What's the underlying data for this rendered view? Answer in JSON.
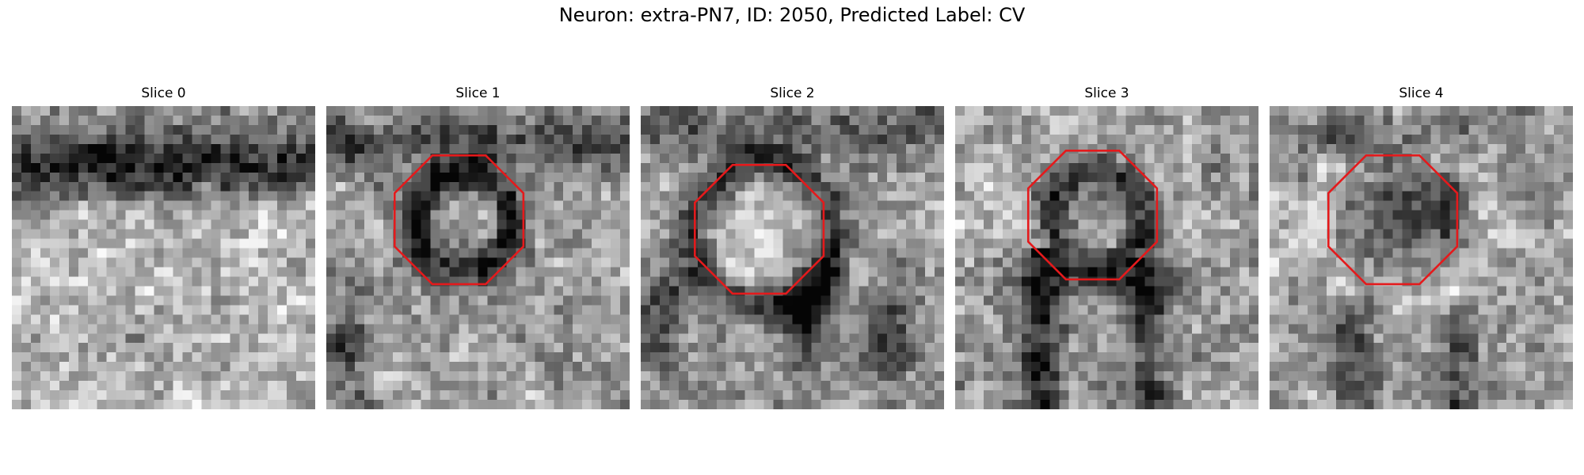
{
  "figure": {
    "title": "Neuron: extra-PN7, ID: 2050, Predicted Label: CV"
  },
  "overlay_color": "#e41a1c",
  "slices": [
    {
      "label": "Slice 0",
      "pattern": "dark-top-band",
      "has_roi": false
    },
    {
      "label": "Slice 1",
      "pattern": "dark-ring",
      "has_roi": true
    },
    {
      "label": "Slice 2",
      "pattern": "bright-core-dark-ring",
      "has_roi": true
    },
    {
      "label": "Slice 3",
      "pattern": "ring-dark-stem",
      "has_roi": true
    },
    {
      "label": "Slice 4",
      "pattern": "dark-core",
      "has_roi": true
    }
  ]
}
